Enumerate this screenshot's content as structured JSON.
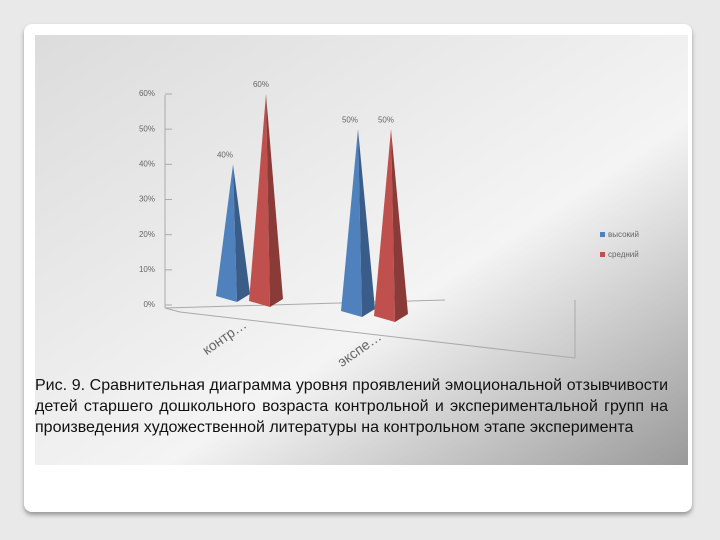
{
  "chart_data": {
    "type": "pyramid",
    "categories": [
      "контр…",
      "экспе…"
    ],
    "series": [
      {
        "name": "высокий",
        "color": "#4f81bd",
        "values": [
          40,
          50
        ],
        "value_labels": [
          "40%",
          "50%"
        ]
      },
      {
        "name": "средний",
        "color": "#c0504d",
        "values": [
          60,
          50
        ],
        "value_labels": [
          "60%",
          "50%"
        ]
      }
    ],
    "ylim": [
      0,
      60
    ],
    "yticks": [
      {
        "value": 0,
        "label": "0%"
      },
      {
        "value": 10,
        "label": "10%"
      },
      {
        "value": 20,
        "label": "20%"
      },
      {
        "value": 30,
        "label": "30%"
      },
      {
        "value": 40,
        "label": "40%"
      },
      {
        "value": 50,
        "label": "50%"
      },
      {
        "value": 60,
        "label": "60%"
      }
    ],
    "caption": "Рис. 9. Сравнительная диаграмма уровня проявлений эмоциональной отзывчивости детей старшего дошкольного возраста контрольной и экспериментальной групп на произведения художественной литературы на контрольном этапе эксперимента"
  }
}
